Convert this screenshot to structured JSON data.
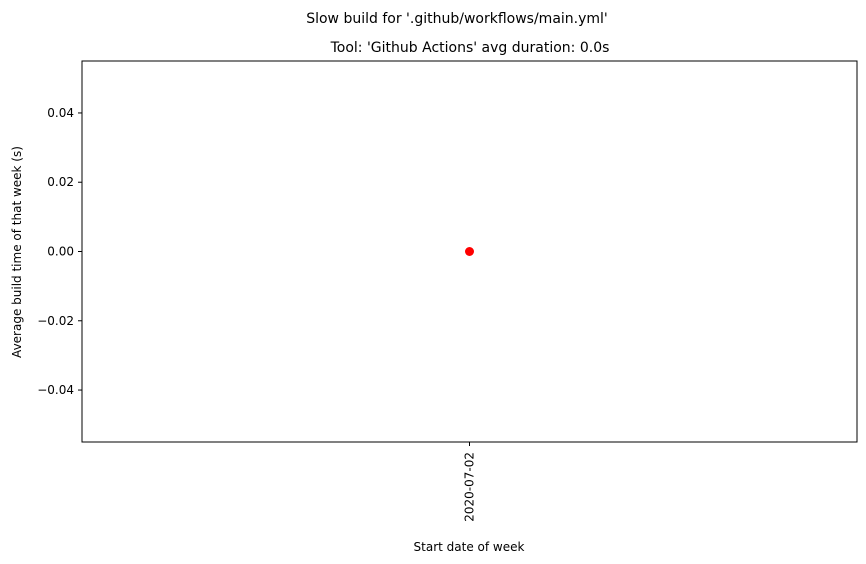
{
  "chart_data": {
    "type": "scatter",
    "title": "Slow build for '.github/workflows/main.yml'",
    "subtitle": "Tool: 'Github Actions' avg duration: 0.0s",
    "xlabel": "Start date of week",
    "ylabel": "Average build time of that week (s)",
    "x_categories": [
      "2020-07-02"
    ],
    "ylim": [
      -0.055,
      0.055
    ],
    "yticks": [
      -0.04,
      -0.02,
      0.0,
      0.02,
      0.04
    ],
    "ytick_labels": [
      "−0.04",
      "−0.02",
      "0.00",
      "0.02",
      "0.04"
    ],
    "grid": false,
    "series": [
      {
        "color": "#ff0000",
        "points": [
          {
            "x": "2020-07-02",
            "y": 0.0
          }
        ]
      }
    ]
  }
}
